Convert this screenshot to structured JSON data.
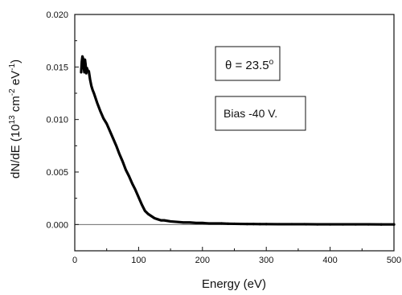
{
  "chart_data": {
    "type": "line",
    "xlabel": "Energy (eV)",
    "ylabel": "dN/dE (10",
    "ylabel_sup1": "13",
    "ylabel_mid": " cm",
    "ylabel_sup2": "-2",
    "ylabel_mid2": " eV",
    "ylabel_sup3": "-1",
    "ylabel_end": ")",
    "xlim": [
      0,
      500
    ],
    "ylim": [
      -0.0025,
      0.02
    ],
    "xticks": [
      "0",
      "100",
      "200",
      "300",
      "400",
      "500"
    ],
    "yticks": [
      "0.000",
      "0.005",
      "0.010",
      "0.015",
      "0.020"
    ],
    "grid": false,
    "zero_line": true,
    "annotations": [
      {
        "text": "θ = 23.5",
        "sup": "o"
      },
      {
        "text": "Bias -40 V."
      }
    ],
    "series": [
      {
        "x": [
          10,
          11,
          12,
          13,
          14,
          15,
          16,
          17,
          18,
          19,
          20,
          22,
          24,
          26,
          28,
          30,
          35,
          40,
          45,
          50,
          55,
          60,
          65,
          70,
          75,
          80,
          85,
          90,
          95,
          100,
          105,
          110,
          115,
          120,
          125,
          130,
          135,
          140,
          150,
          160,
          170,
          180,
          190,
          200,
          210,
          220,
          230,
          240,
          250,
          260,
          270,
          280,
          290,
          300,
          320,
          340,
          360,
          380,
          400,
          420,
          440,
          460,
          480,
          500
        ],
        "y": [
          0.0145,
          0.0155,
          0.016,
          0.0158,
          0.015,
          0.0145,
          0.0157,
          0.0152,
          0.0144,
          0.0149,
          0.0147,
          0.0146,
          0.0138,
          0.0132,
          0.0128,
          0.0125,
          0.0116,
          0.0108,
          0.0101,
          0.0096,
          0.0089,
          0.0082,
          0.0075,
          0.0067,
          0.006,
          0.0052,
          0.0046,
          0.0039,
          0.0033,
          0.0026,
          0.0019,
          0.0013,
          0.001,
          0.0008,
          0.0006,
          0.0005,
          0.0004,
          0.0004,
          0.0003,
          0.00025,
          0.0002,
          0.0002,
          0.00015,
          0.00015,
          0.0001,
          0.0001,
          0.0001,
          8e-05,
          7e-05,
          6e-05,
          5e-05,
          5e-05,
          4e-05,
          4e-05,
          3e-05,
          3e-05,
          3e-05,
          2e-05,
          2e-05,
          2e-05,
          2e-05,
          2e-05,
          1e-05,
          1e-05
        ]
      }
    ]
  }
}
